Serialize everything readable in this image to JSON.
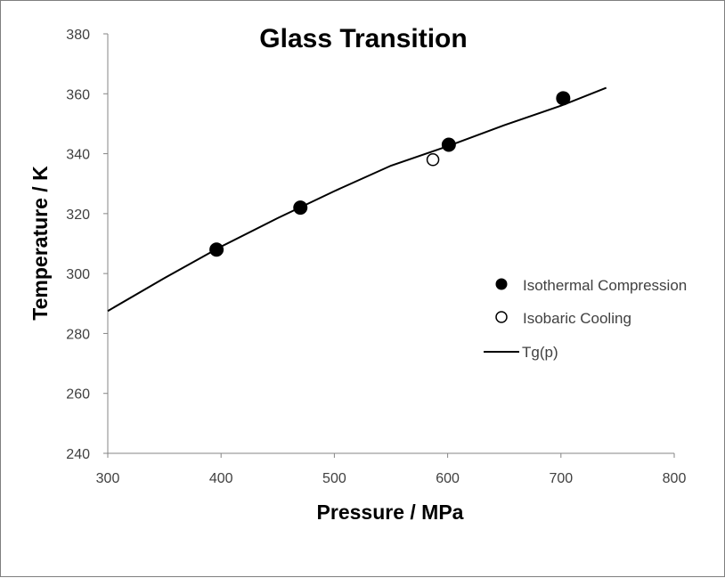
{
  "chart_data": {
    "type": "scatter",
    "title": "Glass Transition",
    "xlabel": "Pressure / MPa",
    "ylabel": "Temperature / K",
    "xlim": [
      300,
      800
    ],
    "ylim": [
      240,
      380
    ],
    "xticks": [
      300,
      400,
      500,
      600,
      700,
      800
    ],
    "yticks": [
      240,
      260,
      280,
      300,
      320,
      340,
      360,
      380
    ],
    "grid": false,
    "legend_position": "right",
    "series": [
      {
        "name": "Isothermal Compression",
        "kind": "scatter",
        "marker": "filled-circle",
        "x": [
          396,
          470,
          601,
          702
        ],
        "y": [
          308,
          322,
          343,
          358.5
        ]
      },
      {
        "name": "Isobaric Cooling",
        "kind": "scatter",
        "marker": "open-circle",
        "x": [
          587
        ],
        "y": [
          338
        ]
      },
      {
        "name": "Tg(p)",
        "kind": "line",
        "x": [
          300,
          350,
          400,
          450,
          500,
          550,
          600,
          650,
          700,
          740
        ],
        "y": [
          287.5,
          298.5,
          309,
          318.5,
          327.5,
          336,
          342.5,
          349.5,
          356,
          362
        ]
      }
    ]
  }
}
